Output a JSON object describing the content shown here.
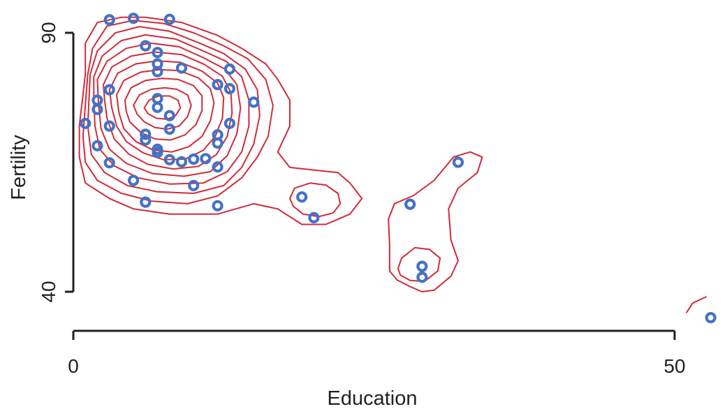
{
  "colors": {
    "points": "#4472c4",
    "contours": "#d12b3a",
    "axes": "#222222",
    "background": "#ffffff"
  },
  "chart_data": {
    "type": "scatter",
    "title": "",
    "xlabel": "Education",
    "ylabel": "Fertility",
    "xlim": [
      0,
      53
    ],
    "ylim": [
      34,
      92
    ],
    "x_ticks": [
      0,
      50
    ],
    "y_ticks": [
      40,
      90
    ],
    "x_tick_labels": [
      "0",
      "50"
    ],
    "y_tick_labels": [
      "40",
      "90"
    ],
    "grid": false,
    "legend": "none",
    "overlay": "2D kernel density contours",
    "points": [
      {
        "x": 3,
        "y": 92.5
      },
      {
        "x": 5,
        "y": 92.8
      },
      {
        "x": 8,
        "y": 92.6
      },
      {
        "x": 6,
        "y": 87.5
      },
      {
        "x": 7,
        "y": 86.2
      },
      {
        "x": 7,
        "y": 84.0
      },
      {
        "x": 7,
        "y": 82.5
      },
      {
        "x": 9,
        "y": 83.2
      },
      {
        "x": 13,
        "y": 83.0
      },
      {
        "x": 12,
        "y": 80.0
      },
      {
        "x": 13,
        "y": 79.2
      },
      {
        "x": 3,
        "y": 79.0
      },
      {
        "x": 2,
        "y": 77.0
      },
      {
        "x": 2,
        "y": 75.2
      },
      {
        "x": 7,
        "y": 77.3
      },
      {
        "x": 7,
        "y": 75.6
      },
      {
        "x": 15,
        "y": 76.6
      },
      {
        "x": 8,
        "y": 74.0
      },
      {
        "x": 1,
        "y": 72.5
      },
      {
        "x": 3,
        "y": 72.0
      },
      {
        "x": 8,
        "y": 71.4
      },
      {
        "x": 13,
        "y": 72.5
      },
      {
        "x": 6,
        "y": 70.4
      },
      {
        "x": 6,
        "y": 69.3
      },
      {
        "x": 12,
        "y": 70.3
      },
      {
        "x": 12,
        "y": 68.7
      },
      {
        "x": 2,
        "y": 68.2
      },
      {
        "x": 7,
        "y": 67.5
      },
      {
        "x": 7,
        "y": 66.9
      },
      {
        "x": 8,
        "y": 65.5
      },
      {
        "x": 9,
        "y": 65.1
      },
      {
        "x": 10,
        "y": 65.6
      },
      {
        "x": 11,
        "y": 65.7
      },
      {
        "x": 3,
        "y": 64.9
      },
      {
        "x": 12,
        "y": 64.1
      },
      {
        "x": 5,
        "y": 61.5
      },
      {
        "x": 10,
        "y": 60.5
      },
      {
        "x": 6,
        "y": 57.3
      },
      {
        "x": 12,
        "y": 56.6
      },
      {
        "x": 19,
        "y": 58.3
      },
      {
        "x": 20,
        "y": 54.3
      },
      {
        "x": 28,
        "y": 56.9
      },
      {
        "x": 32,
        "y": 65.0
      },
      {
        "x": 29,
        "y": 44.9
      },
      {
        "x": 29,
        "y": 42.8
      },
      {
        "x": 53,
        "y": 35.0
      }
    ],
    "contour_levels": 12
  },
  "contours": [
    [
      [
        1,
        82
      ],
      [
        1,
        88
      ],
      [
        2,
        92
      ],
      [
        4,
        93
      ],
      [
        6,
        93
      ],
      [
        9,
        92
      ],
      [
        12,
        89.5
      ],
      [
        14,
        87
      ],
      [
        16,
        84
      ],
      [
        17,
        81
      ],
      [
        18,
        77
      ],
      [
        18,
        72
      ],
      [
        17,
        67
      ],
      [
        18,
        64
      ],
      [
        20,
        63.5
      ],
      [
        22,
        63
      ],
      [
        23,
        61
      ],
      [
        24,
        58
      ],
      [
        23,
        55
      ],
      [
        21,
        53
      ],
      [
        19,
        53
      ],
      [
        17,
        56
      ],
      [
        15,
        57
      ],
      [
        12,
        55
      ],
      [
        8,
        55
      ],
      [
        5,
        56
      ],
      [
        3,
        58
      ],
      [
        1,
        61
      ],
      [
        0.5,
        66
      ],
      [
        0.5,
        72
      ],
      [
        0.8,
        78
      ],
      [
        1,
        82
      ]
    ],
    [
      [
        1.2,
        82
      ],
      [
        1.6,
        87
      ],
      [
        2.8,
        91.3
      ],
      [
        5,
        92.4
      ],
      [
        7.5,
        91.8
      ],
      [
        10,
        90
      ],
      [
        12.5,
        87.5
      ],
      [
        14.5,
        85
      ],
      [
        16,
        81
      ],
      [
        16.6,
        76
      ],
      [
        16.2,
        70
      ],
      [
        15.3,
        66
      ],
      [
        14,
        62
      ],
      [
        12,
        58.5
      ],
      [
        9.5,
        57
      ],
      [
        6.5,
        57.5
      ],
      [
        4,
        59
      ],
      [
        2,
        61.5
      ],
      [
        1,
        65
      ],
      [
        0.8,
        70
      ],
      [
        1,
        76
      ],
      [
        1.2,
        82
      ]
    ],
    [
      [
        1.4,
        82
      ],
      [
        2,
        86.5
      ],
      [
        3.5,
        90
      ],
      [
        5.5,
        91.2
      ],
      [
        8,
        90.3
      ],
      [
        10.5,
        88
      ],
      [
        12.5,
        86
      ],
      [
        14.3,
        83
      ],
      [
        15.3,
        79
      ],
      [
        15.5,
        74
      ],
      [
        15,
        68.5
      ],
      [
        14,
        64
      ],
      [
        12.5,
        60.5
      ],
      [
        10,
        59
      ],
      [
        7,
        59.3
      ],
      [
        4.5,
        60.5
      ],
      [
        2.6,
        63
      ],
      [
        1.5,
        66.5
      ],
      [
        1.2,
        72
      ],
      [
        1.3,
        77
      ],
      [
        1.4,
        82
      ]
    ],
    [
      [
        1.7,
        81.5
      ],
      [
        2.4,
        85.5
      ],
      [
        4,
        88.5
      ],
      [
        6,
        89.6
      ],
      [
        8.5,
        88.8
      ],
      [
        10.8,
        86.5
      ],
      [
        12.7,
        84.5
      ],
      [
        14,
        81.5
      ],
      [
        14.6,
        77
      ],
      [
        14.6,
        72
      ],
      [
        14,
        67
      ],
      [
        12.8,
        63.2
      ],
      [
        10.8,
        61
      ],
      [
        8,
        60.8
      ],
      [
        5.4,
        62
      ],
      [
        3.4,
        64.3
      ],
      [
        2.2,
        67.5
      ],
      [
        1.8,
        72
      ],
      [
        1.7,
        77
      ],
      [
        1.7,
        81.5
      ]
    ],
    [
      [
        2,
        81
      ],
      [
        2.8,
        84.5
      ],
      [
        4.4,
        87
      ],
      [
        6.4,
        88
      ],
      [
        8.8,
        87.3
      ],
      [
        10.8,
        85.2
      ],
      [
        12.6,
        83
      ],
      [
        13.6,
        80
      ],
      [
        13.9,
        75.5
      ],
      [
        13.6,
        70.5
      ],
      [
        12.8,
        66.3
      ],
      [
        11.4,
        63.2
      ],
      [
        9.2,
        62.3
      ],
      [
        6.6,
        62.8
      ],
      [
        4.4,
        64.8
      ],
      [
        3,
        67.5
      ],
      [
        2.3,
        71.5
      ],
      [
        2.1,
        76
      ],
      [
        2,
        81
      ]
    ],
    [
      [
        2.5,
        80
      ],
      [
        3.2,
        83.4
      ],
      [
        4.8,
        85.5
      ],
      [
        6.8,
        86.3
      ],
      [
        9,
        85.8
      ],
      [
        10.9,
        83.9
      ],
      [
        12.4,
        81.6
      ],
      [
        13.1,
        78.5
      ],
      [
        13.2,
        74.5
      ],
      [
        12.8,
        70
      ],
      [
        11.9,
        66.5
      ],
      [
        10.4,
        64.2
      ],
      [
        8.3,
        63.7
      ],
      [
        6.2,
        64.6
      ],
      [
        4.6,
        66.6
      ],
      [
        3.4,
        69.5
      ],
      [
        2.8,
        73.5
      ],
      [
        2.6,
        77
      ],
      [
        2.5,
        80
      ]
    ],
    [
      [
        3,
        79
      ],
      [
        3.7,
        82.2
      ],
      [
        5.2,
        84
      ],
      [
        7,
        84.6
      ],
      [
        8.9,
        84.3
      ],
      [
        10.7,
        82.6
      ],
      [
        12,
        80.3
      ],
      [
        12.5,
        77.5
      ],
      [
        12.4,
        73.5
      ],
      [
        11.8,
        70
      ],
      [
        10.8,
        67.3
      ],
      [
        9.3,
        65.6
      ],
      [
        7.5,
        65.5
      ],
      [
        5.8,
        66.8
      ],
      [
        4.4,
        69
      ],
      [
        3.6,
        72
      ],
      [
        3.2,
        75.5
      ],
      [
        3,
        79
      ]
    ],
    [
      [
        3.6,
        78
      ],
      [
        4.2,
        80.8
      ],
      [
        5.6,
        82.4
      ],
      [
        7.2,
        82.9
      ],
      [
        8.8,
        82.7
      ],
      [
        10.4,
        81.3
      ],
      [
        11.4,
        79.2
      ],
      [
        11.7,
        76.5
      ],
      [
        11.4,
        73
      ],
      [
        10.7,
        70
      ],
      [
        9.6,
        68
      ],
      [
        8.2,
        67
      ],
      [
        6.6,
        67.4
      ],
      [
        5.2,
        69
      ],
      [
        4.2,
        71.5
      ],
      [
        3.8,
        74.5
      ],
      [
        3.6,
        78
      ]
    ],
    [
      [
        4.3,
        77
      ],
      [
        4.8,
        79.4
      ],
      [
        6,
        80.8
      ],
      [
        7.4,
        81.2
      ],
      [
        8.7,
        81
      ],
      [
        10,
        79.8
      ],
      [
        10.7,
        77.8
      ],
      [
        10.7,
        75
      ],
      [
        10.2,
        72.3
      ],
      [
        9.3,
        70.3
      ],
      [
        8.1,
        69.3
      ],
      [
        6.8,
        69.5
      ],
      [
        5.6,
        70.8
      ],
      [
        4.7,
        72.8
      ],
      [
        4.4,
        74.8
      ],
      [
        4.3,
        77
      ]
    ],
    [
      [
        5,
        76
      ],
      [
        5.5,
        78
      ],
      [
        6.5,
        79.1
      ],
      [
        7.6,
        79.4
      ],
      [
        8.6,
        79.1
      ],
      [
        9.5,
        78
      ],
      [
        9.8,
        76
      ],
      [
        9.5,
        73.8
      ],
      [
        8.8,
        72
      ],
      [
        7.8,
        71.4
      ],
      [
        6.8,
        71.7
      ],
      [
        5.9,
        72.8
      ],
      [
        5.3,
        74.3
      ],
      [
        5,
        76
      ]
    ],
    [
      [
        5.9,
        75.5
      ],
      [
        6.3,
        77
      ],
      [
        7.1,
        77.8
      ],
      [
        8,
        77.8
      ],
      [
        8.7,
        77
      ],
      [
        8.9,
        75.5
      ],
      [
        8.5,
        74
      ],
      [
        7.8,
        73.3
      ],
      [
        6.9,
        73.5
      ],
      [
        6.2,
        74.4
      ],
      [
        5.9,
        75.5
      ]
    ],
    [
      [
        18,
        58
      ],
      [
        18.4,
        60
      ],
      [
        19.7,
        61
      ],
      [
        21,
        60.6
      ],
      [
        22,
        59
      ],
      [
        22.2,
        57
      ],
      [
        21.6,
        55.2
      ],
      [
        20.4,
        54.5
      ],
      [
        19.1,
        55
      ],
      [
        18.3,
        56.5
      ],
      [
        18,
        58
      ]
    ],
    [
      [
        26.3,
        44
      ],
      [
        26.3,
        49
      ],
      [
        26.2,
        54
      ],
      [
        26.7,
        57
      ],
      [
        28.3,
        58.6
      ],
      [
        30,
        61.5
      ],
      [
        31.6,
        66
      ],
      [
        33,
        67
      ],
      [
        34,
        66
      ],
      [
        33.6,
        63
      ],
      [
        32,
        60
      ],
      [
        31.2,
        56
      ],
      [
        31.4,
        50
      ],
      [
        32,
        46
      ],
      [
        31.4,
        43
      ],
      [
        30,
        40.3
      ],
      [
        29,
        40
      ],
      [
        28,
        41
      ],
      [
        26.9,
        42.3
      ],
      [
        26.3,
        44
      ]
    ],
    [
      [
        27,
        44.5
      ],
      [
        27.3,
        46.5
      ],
      [
        28.4,
        48.5
      ],
      [
        29.6,
        48.2
      ],
      [
        30.5,
        46.5
      ],
      [
        30.3,
        44
      ],
      [
        29.2,
        42
      ],
      [
        28,
        42.2
      ],
      [
        27.2,
        43.2
      ],
      [
        27,
        44.5
      ]
    ],
    [
      [
        28.9,
        43.3
      ],
      [
        29.1,
        43.6
      ]
    ],
    [
      [
        51,
        36
      ],
      [
        51.5,
        37.8
      ],
      [
        52.6,
        39
      ]
    ]
  ]
}
